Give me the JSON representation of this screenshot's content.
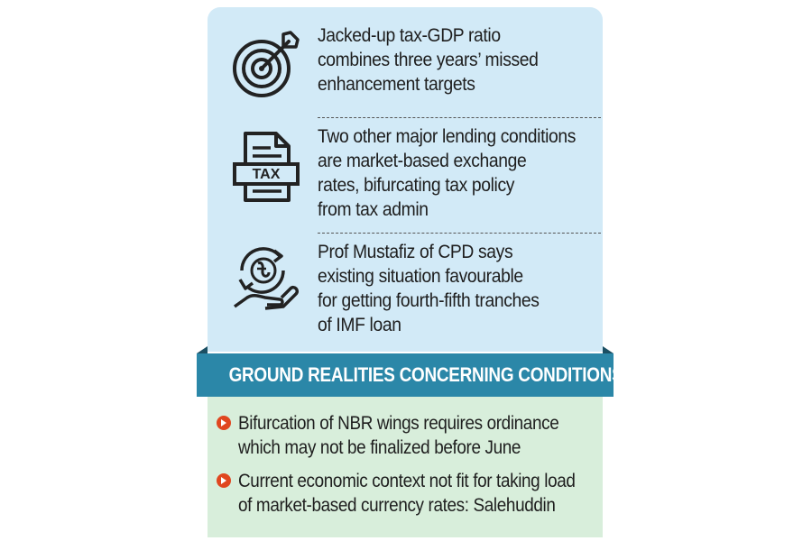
{
  "points": [
    {
      "icon": "target-icon",
      "lines": [
        "Jacked-up tax-GDP ratio",
        "combines three years’ missed",
        "enhancement targets"
      ]
    },
    {
      "icon": "tax-document-icon",
      "icon_label": "TAX",
      "lines": [
        "Two other major lending conditions",
        "are market-based exchange",
        "rates, bifurcating tax policy",
        "from tax admin"
      ]
    },
    {
      "icon": "taka-hand-cycle-icon",
      "lines": [
        "Prof Mustafiz of CPD says",
        "existing situation favourable",
        "for getting fourth-fifth tranches",
        "of IMF loan"
      ]
    }
  ],
  "banner": {
    "title": "GROUND REALITIES CONCERNING CONDITIONS"
  },
  "realities": [
    {
      "lines": [
        "Bifurcation of NBR wings requires ordinance",
        "which may not be finalized before June"
      ]
    },
    {
      "lines": [
        "Current economic context not fit for taking load",
        "of market-based currency rates: Salehuddin"
      ]
    }
  ],
  "colors": {
    "top_panel": "#d2eaf7",
    "banner": "#2b87a8",
    "bottom_panel": "#d8eedb",
    "bullet": "#e0461f"
  }
}
